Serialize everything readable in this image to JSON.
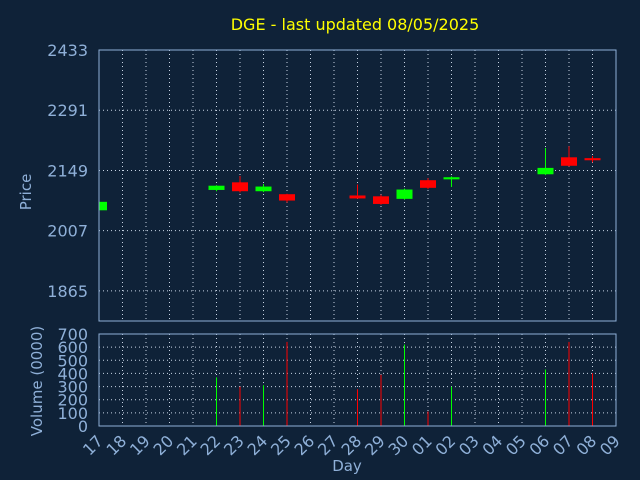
{
  "chart_data": {
    "type": "candlestick",
    "title": "DGE - last updated 08/05/2025",
    "ylabel": "Price",
    "volume_ylabel": "Volume (0000)",
    "xlabel": "Day",
    "price_ticks": [
      "1865",
      "2007",
      "2149",
      "2291",
      "2433"
    ],
    "price_range": [
      1794,
      2433
    ],
    "volume_ticks": [
      "0",
      "100",
      "200",
      "300",
      "400",
      "500",
      "600",
      "700"
    ],
    "volume_range": [
      0,
      700
    ],
    "x_labels": [
      "17",
      "18",
      "19",
      "20",
      "21",
      "22",
      "23",
      "24",
      "25",
      "26",
      "27",
      "28",
      "29",
      "30",
      "01",
      "02",
      "03",
      "04",
      "05",
      "06",
      "07",
      "08",
      "09"
    ],
    "colors": {
      "up": "#00ff00",
      "down": "#ff0000",
      "title": "#ffff00",
      "text": "#8fb0d8",
      "background": "#0f2238"
    },
    "candles": [
      {
        "day": "17",
        "open": 2055,
        "close": 2075,
        "high": 2077,
        "low": 2053,
        "volume": 380
      },
      {
        "day": "22",
        "open": 2103,
        "close": 2113,
        "high": 2114,
        "low": 2100,
        "volume": 370
      },
      {
        "day": "23",
        "open": 2121,
        "close": 2100,
        "high": 2136,
        "low": 2097,
        "volume": 300
      },
      {
        "day": "24",
        "open": 2100,
        "close": 2111,
        "high": 2117,
        "low": 2098,
        "volume": 310
      },
      {
        "day": "25",
        "open": 2093,
        "close": 2078,
        "high": 2094,
        "low": 2073,
        "volume": 640
      },
      {
        "day": "28",
        "open": 2090,
        "close": 2083,
        "high": 2116,
        "low": 2082,
        "volume": 280
      },
      {
        "day": "29",
        "open": 2088,
        "close": 2070,
        "high": 2092,
        "low": 2068,
        "volume": 390
      },
      {
        "day": "30",
        "open": 2082,
        "close": 2104,
        "high": 2106,
        "low": 2080,
        "volume": 620
      },
      {
        "day": "01",
        "open": 2126,
        "close": 2108,
        "high": 2131,
        "low": 2105,
        "volume": 110
      },
      {
        "day": "02",
        "open": 2128,
        "close": 2133,
        "high": 2135,
        "low": 2110,
        "volume": 300
      },
      {
        "day": "06",
        "open": 2140,
        "close": 2155,
        "high": 2202,
        "low": 2138,
        "volume": 430
      },
      {
        "day": "07",
        "open": 2180,
        "close": 2160,
        "high": 2206,
        "low": 2158,
        "volume": 640
      },
      {
        "day": "08",
        "open": 2178,
        "close": 2173,
        "high": 2183,
        "low": 2168,
        "volume": 400
      }
    ]
  }
}
